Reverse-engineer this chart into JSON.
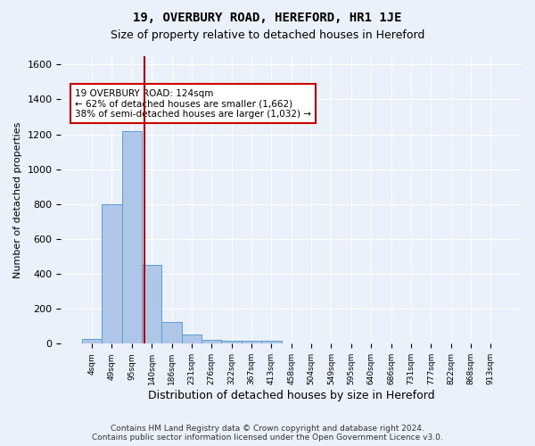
{
  "title1": "19, OVERBURY ROAD, HEREFORD, HR1 1JE",
  "title2": "Size of property relative to detached houses in Hereford",
  "xlabel": "Distribution of detached houses by size in Hereford",
  "ylabel": "Number of detached properties",
  "bin_labels": [
    "4sqm",
    "49sqm",
    "95sqm",
    "140sqm",
    "186sqm",
    "231sqm",
    "276sqm",
    "322sqm",
    "367sqm",
    "413sqm",
    "458sqm",
    "504sqm",
    "549sqm",
    "595sqm",
    "640sqm",
    "686sqm",
    "731sqm",
    "777sqm",
    "822sqm",
    "868sqm",
    "913sqm"
  ],
  "bar_values": [
    25,
    800,
    1220,
    450,
    125,
    55,
    20,
    18,
    15,
    15,
    0,
    0,
    0,
    0,
    0,
    0,
    0,
    0,
    0,
    0,
    0
  ],
  "bar_color": "#aec6e8",
  "bar_edge_color": "#5a9fd4",
  "bg_color": "#eaf1fb",
  "fig_bg_color": "#eaf1fb",
  "grid_color": "#ffffff",
  "red_line_color": "#cc0000",
  "annotation_text": "19 OVERBURY ROAD: 124sqm\n← 62% of detached houses are smaller (1,662)\n38% of semi-detached houses are larger (1,032) →",
  "annotation_box_color": "#ffffff",
  "annotation_border_color": "#cc0000",
  "ylim": [
    0,
    1650
  ],
  "yticks": [
    0,
    200,
    400,
    600,
    800,
    1000,
    1200,
    1400,
    1600
  ],
  "footnote": "Contains HM Land Registry data © Crown copyright and database right 2024.\nContains public sector information licensed under the Open Government Licence v3.0."
}
